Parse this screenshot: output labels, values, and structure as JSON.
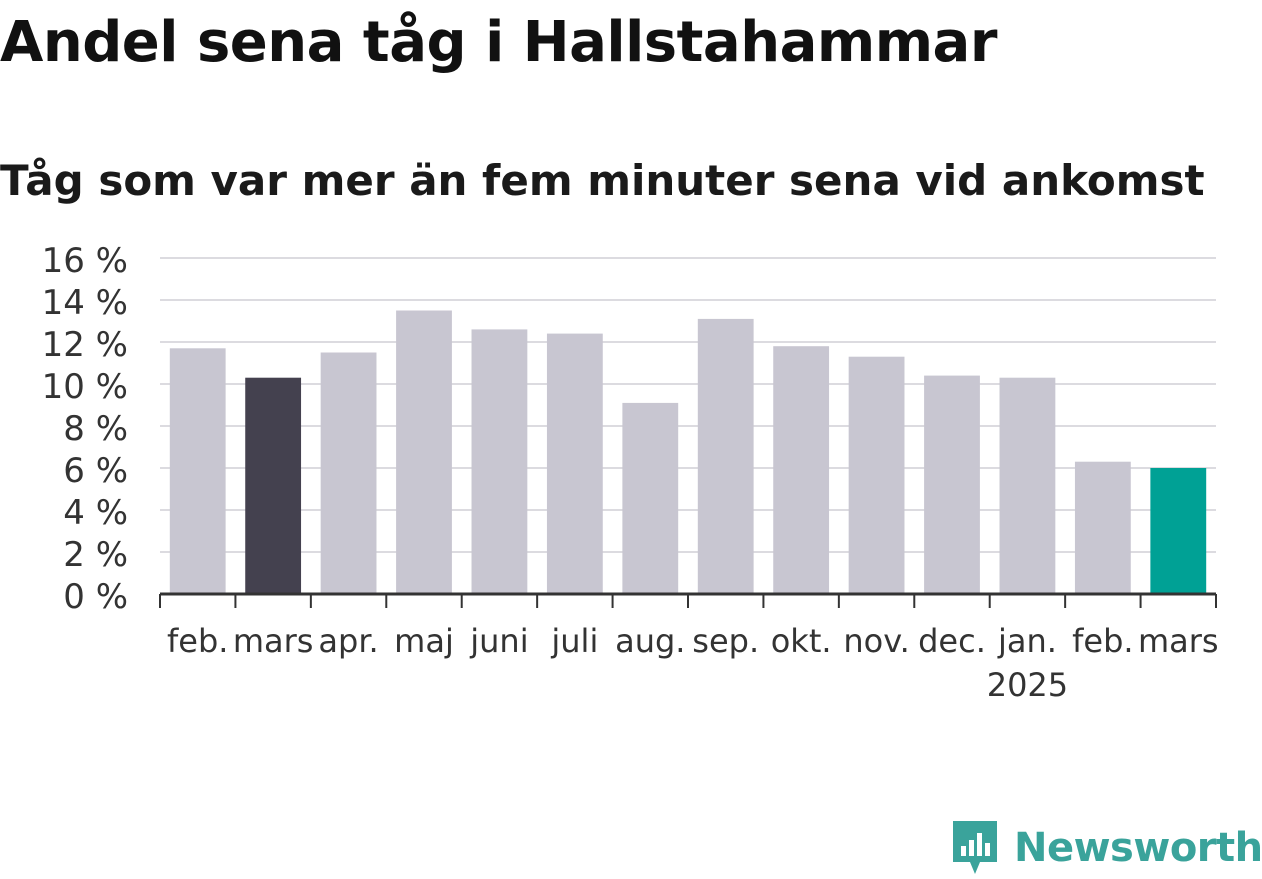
{
  "title": "Andel sena tåg i Hallstahammar",
  "subtitle": "Tåg som var mer än fem minuter sena vid ankomst",
  "brand": "Newsworthy",
  "colors": {
    "default_bar": "#c8c6d1",
    "highlight_prev": "#44414f",
    "highlight_current": "#00a195",
    "brand": "#3aa39b"
  },
  "chart_data": {
    "type": "bar",
    "categories": [
      "feb.",
      "mars",
      "apr.",
      "maj",
      "juni",
      "juli",
      "aug.",
      "sep.",
      "okt.",
      "nov.",
      "dec.",
      "jan.",
      "feb.",
      "mars"
    ],
    "year_label": "2025",
    "values": [
      11.7,
      10.3,
      11.5,
      13.5,
      12.6,
      12.4,
      9.1,
      13.1,
      11.8,
      11.3,
      10.4,
      10.3,
      6.3,
      6.0
    ],
    "highlight": {
      "1": "highlight_prev",
      "13": "highlight_current"
    },
    "ylim": [
      0,
      16
    ],
    "yticks": [
      0,
      2,
      4,
      6,
      8,
      10,
      12,
      14,
      16
    ],
    "ytick_labels": [
      "0 %",
      "2 %",
      "4 %",
      "6 %",
      "8 %",
      "10 %",
      "12 %",
      "14 %",
      "16 %"
    ],
    "grid": true
  }
}
